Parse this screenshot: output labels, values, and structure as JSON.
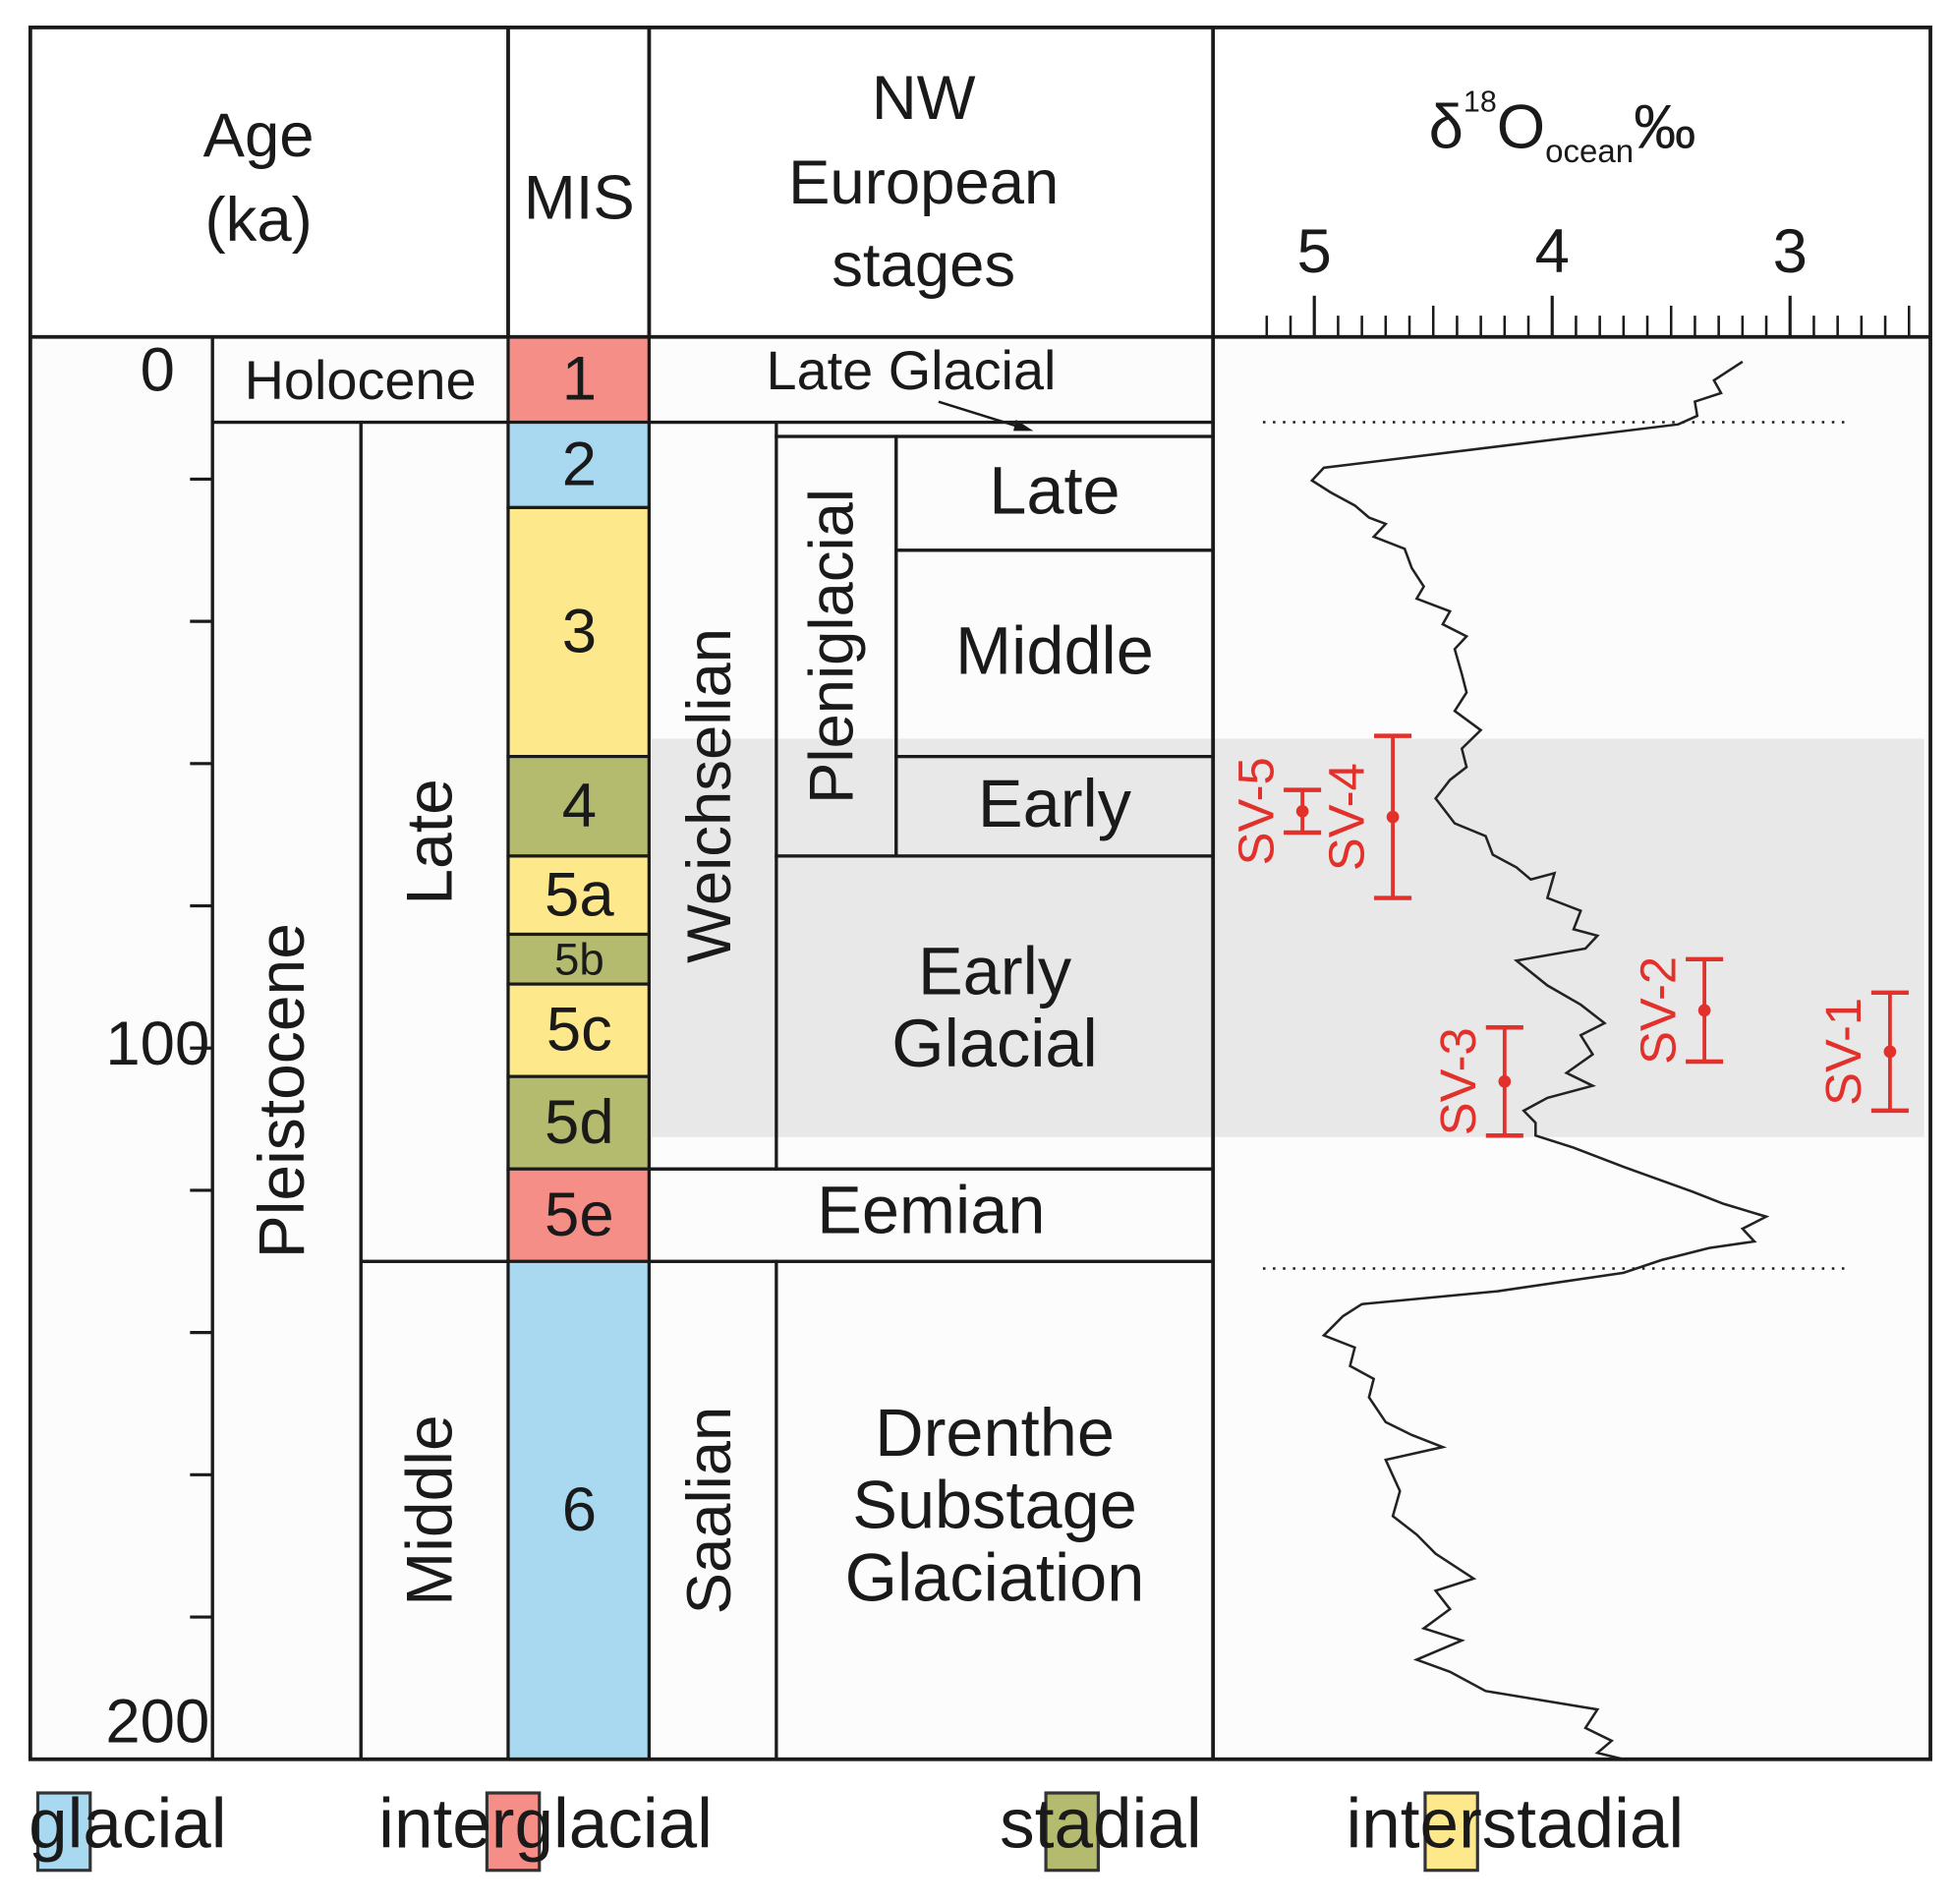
{
  "chart_data": {
    "type": "stratigraphy",
    "headers": {
      "age": [
        "Age",
        "(ka)"
      ],
      "mis": "MIS",
      "stages": [
        "NW",
        "European",
        "stages"
      ],
      "isotope": {
        "symbol": "δ",
        "sup": "18",
        "element": "O",
        "sub": "ocean",
        "unit": "‰"
      }
    },
    "ylim": [
      0,
      200
    ],
    "yticks": [
      0,
      100,
      200
    ],
    "minor_yticks": [
      20,
      40,
      60,
      80,
      120,
      140,
      160,
      180
    ],
    "xlim": [
      5.41,
      2.41
    ],
    "xticks": [
      5,
      4,
      3
    ],
    "minor_xticks": [
      5.2,
      5.1,
      4.9,
      4.8,
      4.7,
      4.6,
      4.5,
      4.4,
      4.3,
      4.2,
      4.1,
      3.9,
      3.8,
      3.7,
      3.6,
      3.5,
      3.4,
      3.3,
      3.2,
      3.1,
      2.9,
      2.8,
      2.7,
      2.6,
      2.5
    ],
    "epochs": [
      {
        "label": "Holocene",
        "range": [
          0,
          12
        ]
      },
      {
        "label": "Pleistocene",
        "range": [
          12,
          200
        ]
      }
    ],
    "subepochs": [
      {
        "label": "Late",
        "range": [
          12,
          130
        ]
      },
      {
        "label": "Middle",
        "range": [
          130,
          200
        ]
      }
    ],
    "legend": [
      {
        "label": "glacial",
        "color": "#a9d8f1"
      },
      {
        "label": "interglacial",
        "color": "#f68e88"
      },
      {
        "label": "stadial",
        "color": "#b4ba6e"
      },
      {
        "label": "interstadial",
        "color": "#fde88c"
      }
    ],
    "mis": [
      {
        "label": "1",
        "range": [
          0,
          12
        ],
        "climate": 1
      },
      {
        "label": "2",
        "range": [
          12,
          24
        ],
        "climate": 0
      },
      {
        "label": "3",
        "range": [
          24,
          59
        ],
        "climate": 3
      },
      {
        "label": "4",
        "range": [
          59,
          73
        ],
        "climate": 2
      },
      {
        "label": "5a",
        "range": [
          73,
          84
        ],
        "climate": 3
      },
      {
        "label": "5b",
        "range": [
          84,
          91
        ],
        "climate": 2
      },
      {
        "label": "5c",
        "range": [
          91,
          104
        ],
        "climate": 3
      },
      {
        "label": "5d",
        "range": [
          104,
          117
        ],
        "climate": 2
      },
      {
        "label": "5e",
        "range": [
          117,
          130
        ],
        "climate": 1
      },
      {
        "label": "6",
        "range": [
          130,
          200
        ],
        "climate": 0
      }
    ],
    "stages": [
      {
        "label": "Weichselian",
        "range": [
          12,
          117
        ]
      },
      {
        "label": "Saalian",
        "range": [
          130,
          200
        ]
      }
    ],
    "substages": [
      {
        "label": [
          "Late Glacial"
        ],
        "range": [
          12,
          14
        ]
      },
      {
        "label": [
          "Pleniglacial"
        ],
        "range": [
          14,
          73
        ],
        "parts": [
          {
            "label": "Late",
            "range": [
              14,
              30
            ]
          },
          {
            "label": "Middle",
            "range": [
              30,
              59
            ]
          },
          {
            "label": "Early",
            "range": [
              59,
              73
            ]
          }
        ]
      },
      {
        "label": [
          "Early",
          "Glacial"
        ],
        "range": [
          73,
          117
        ]
      },
      {
        "label": [
          "Eemian"
        ],
        "range": [
          117,
          130
        ]
      },
      {
        "label": [
          "Drenthe",
          "Substage",
          "Glaciation"
        ],
        "range": [
          130,
          200
        ]
      }
    ],
    "highlight_range": [
      56.5,
      112.5
    ],
    "reference_lines": [
      12,
      131
    ],
    "series": {
      "color": "#222222",
      "x": [
        3.2,
        3.32,
        3.29,
        3.4,
        3.39,
        3.47,
        4.96,
        5.01,
        4.93,
        4.83,
        4.77,
        4.7,
        4.75,
        4.62,
        4.59,
        4.54,
        4.57,
        4.43,
        4.46,
        4.36,
        4.41,
        4.38,
        4.36,
        4.41,
        4.3,
        4.38,
        4.36,
        4.43,
        4.49,
        4.41,
        4.28,
        4.25,
        4.15,
        4.09,
        3.99,
        4.02,
        3.88,
        3.91,
        3.81,
        3.86,
        4.15,
        4.02,
        3.88,
        3.78,
        3.88,
        3.83,
        3.94,
        3.83,
        4.02,
        4.12,
        4.07,
        4.07,
        3.91,
        3.7,
        3.41,
        3.28,
        3.1,
        3.2,
        3.15,
        3.34,
        3.54,
        3.7,
        4.23,
        4.8,
        4.88,
        4.96,
        4.83,
        4.85,
        4.75,
        4.77,
        4.7,
        4.59,
        4.46,
        4.7,
        4.64,
        4.67,
        4.57,
        4.49,
        4.33,
        4.49,
        4.43,
        4.54,
        4.38,
        4.57,
        4.43,
        4.28,
        3.81,
        3.86,
        3.75,
        3.81,
        3.7
      ],
      "y": [
        3.5,
        6.1,
        7.9,
        9.1,
        11.1,
        12.3,
        18.4,
        20.2,
        21.9,
        23.7,
        25.4,
        26.3,
        28.1,
        29.8,
        32.5,
        35.1,
        36.8,
        38.6,
        40.4,
        42.1,
        43.9,
        47.4,
        50.0,
        52.6,
        55.3,
        57.9,
        60.5,
        62.3,
        64.9,
        68.4,
        70.2,
        72.8,
        74.6,
        76.3,
        75.4,
        78.9,
        80.7,
        83.3,
        84.2,
        86.0,
        87.7,
        91.2,
        93.9,
        96.5,
        98.2,
        100.9,
        103.5,
        105.3,
        107.0,
        108.8,
        110.5,
        112.3,
        114.0,
        116.7,
        120.2,
        121.9,
        123.7,
        125.4,
        127.2,
        128.1,
        129.8,
        131.6,
        134.2,
        136.0,
        137.7,
        140.4,
        142.1,
        144.7,
        146.5,
        149.1,
        152.6,
        154.4,
        156.1,
        157.9,
        162.3,
        165.8,
        168.4,
        171.1,
        174.6,
        176.3,
        178.9,
        181.6,
        183.3,
        186.0,
        187.7,
        190.4,
        193.0,
        195.6,
        197.4,
        199.1,
        200.0
      ]
    },
    "samples_color": "#e2302b",
    "samples": [
      {
        "label": "SV-1",
        "x": 2.58,
        "y": 100.5,
        "error": 8.3
      },
      {
        "label": "SV-2",
        "x": 3.36,
        "y": 94.7,
        "error": 7.2
      },
      {
        "label": "SV-3",
        "x": 4.2,
        "y": 104.7,
        "error": 7.6
      },
      {
        "label": "SV-4",
        "x": 4.67,
        "y": 67.5,
        "error": 11.4
      },
      {
        "label": "SV-5",
        "x": 5.05,
        "y": 66.7,
        "error": 3
      }
    ]
  }
}
